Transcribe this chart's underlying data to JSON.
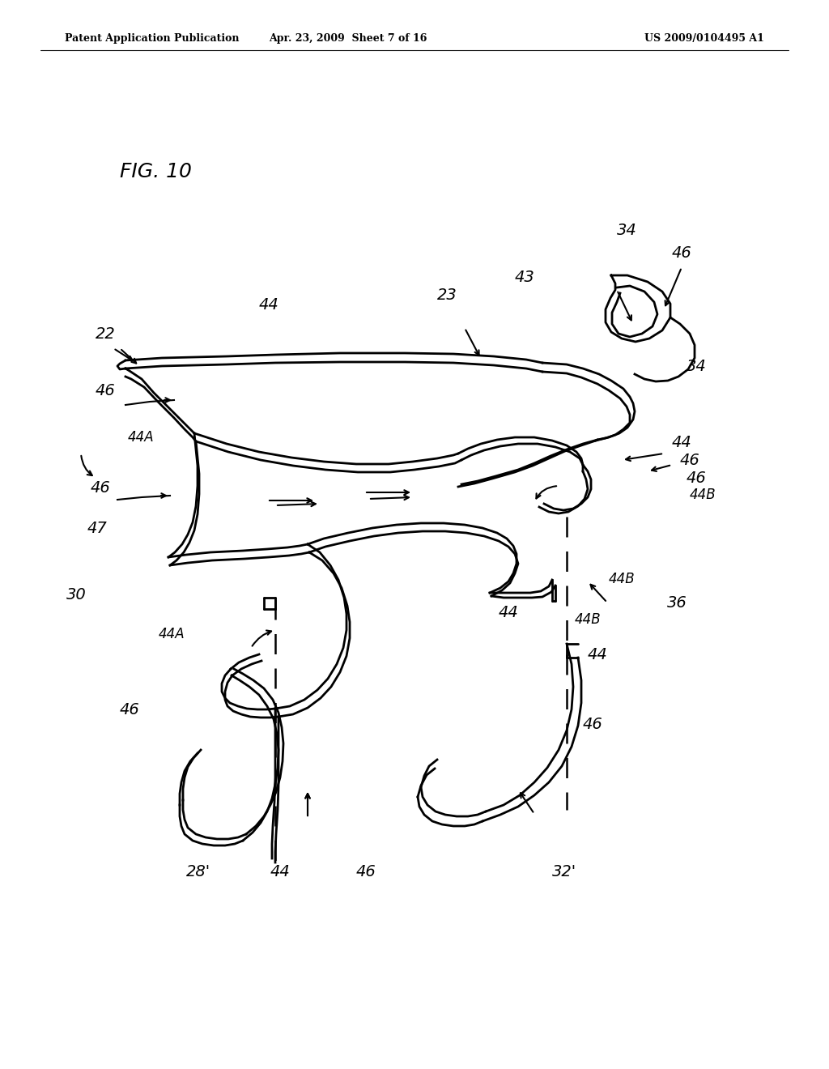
{
  "background_color": "#ffffff",
  "header_left": "Patent Application Publication",
  "header_center": "Apr. 23, 2009  Sheet 7 of 16",
  "header_right": "US 2009/0104495 A1",
  "fig_label": "FIG. 10",
  "line_color": "#000000",
  "lw_main": 2.0,
  "lw_thin": 1.5
}
